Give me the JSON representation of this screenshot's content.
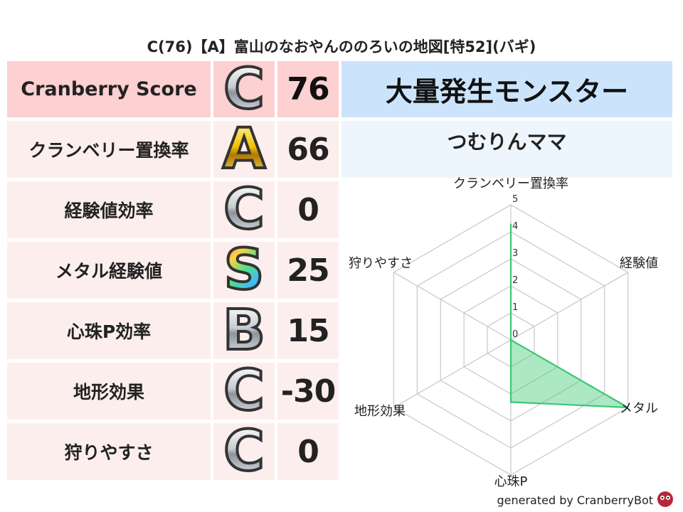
{
  "title": "C(76)【A】富山のなおやんののろいの地図[特52](バギ)",
  "header": {
    "label": "Cranberry Score",
    "grade": "C",
    "value": "76"
  },
  "rows": [
    {
      "label": "クランベリー置換率",
      "grade": "A",
      "value": "66"
    },
    {
      "label": "経験値効率",
      "grade": "C",
      "value": "0"
    },
    {
      "label": "メタル経験値",
      "grade": "S",
      "value": "25"
    },
    {
      "label": "心珠P効率",
      "grade": "B",
      "value": "15"
    },
    {
      "label": "地形効果",
      "grade": "C",
      "value": "-30"
    },
    {
      "label": "狩りやすさ",
      "grade": "C",
      "value": "0"
    }
  ],
  "monster": {
    "heading": "大量発生モンスター",
    "name": "つむりんママ"
  },
  "chart_data": {
    "type": "radar",
    "axes": [
      "クランベリー置換率",
      "経験値",
      "メタル",
      "心珠P",
      "地形効果",
      "狩りやすさ"
    ],
    "values": [
      4.3,
      0,
      5,
      2.3,
      0,
      0
    ],
    "rlim": [
      0,
      5
    ],
    "ticks": [
      "0",
      "1",
      "2",
      "3",
      "4",
      "5"
    ],
    "color": "#3cc873",
    "grid": true
  },
  "footer": "generated by CranberryBot"
}
